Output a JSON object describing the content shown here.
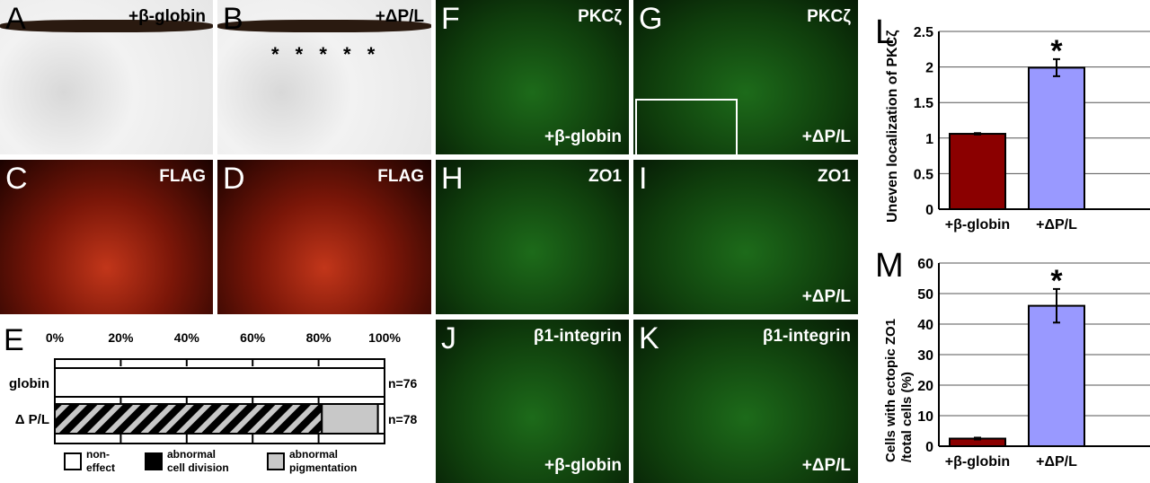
{
  "panels": {
    "A": {
      "letter": "A",
      "tag": "+β-globin"
    },
    "B": {
      "letter": "B",
      "tag": "+ΔP/L",
      "marks": "*  *  *  *  *"
    },
    "C": {
      "letter": "C",
      "tag": "FLAG"
    },
    "D": {
      "letter": "D",
      "tag": "FLAG"
    },
    "F": {
      "letter": "F",
      "tag": "PKCζ",
      "tag2": "+β-globin"
    },
    "G": {
      "letter": "G",
      "tag": "PKCζ",
      "tag2": "+ΔP/L"
    },
    "H": {
      "letter": "H",
      "tag": "ZO1"
    },
    "I": {
      "letter": "I",
      "tag": "ZO1",
      "tag2": "+ΔP/L"
    },
    "J": {
      "letter": "J",
      "tag": "β1-integrin",
      "tag2": "+β-globin"
    },
    "K": {
      "letter": "K",
      "tag": "β1-integrin",
      "tag2": "+ΔP/L"
    }
  },
  "chart_data": [
    {
      "panel": "E",
      "type": "bar",
      "orientation": "horizontal",
      "stacked": true,
      "xticks": [
        "0%",
        "20%",
        "40%",
        "60%",
        "80%",
        "100%"
      ],
      "xlim": [
        0,
        100
      ],
      "categories": [
        "globin",
        "Δ P/L"
      ],
      "n_labels": [
        "n=76",
        "n=78"
      ],
      "series": [
        {
          "name": "abnormal cell division",
          "pattern": "hatched black/gray (with abnormal pigmentation)",
          "values": [
            0,
            81
          ]
        },
        {
          "name": "abnormal pigmentation",
          "color": "#c8c8c8",
          "values": [
            0,
            17
          ]
        },
        {
          "name": "non-effect",
          "color": "#ffffff",
          "values": [
            100,
            2
          ]
        }
      ],
      "legend": [
        {
          "line1": "non-",
          "line2": "effect",
          "color": "#ffffff"
        },
        {
          "line1": "abnormal",
          "line2": "cell division",
          "color": "#000000"
        },
        {
          "line1": "abnormal",
          "line2": "pigmentation",
          "color": "#c8c8c8"
        }
      ],
      "legend_position": "bottom"
    },
    {
      "panel": "L",
      "type": "bar",
      "ylabel": "Uneven localization of PKCζ",
      "categories": [
        "+β-globin",
        "+ΔP/L"
      ],
      "values": [
        1.06,
        1.99
      ],
      "errors": [
        0.01,
        0.12
      ],
      "colors": [
        "#8b0000",
        "#9999ff"
      ],
      "yticks": [
        "0",
        "0.5",
        "1",
        "1.5",
        "2",
        "2.5"
      ],
      "ylim": [
        0,
        2.5
      ],
      "grid": true,
      "annotation": "*"
    },
    {
      "panel": "M",
      "type": "bar",
      "ylabel_line1": "Cells with ectopic ZO1",
      "ylabel_line2": "/total cells (%)",
      "categories": [
        "+β-globin",
        "+ΔP/L"
      ],
      "values": [
        2.5,
        46
      ],
      "errors": [
        0.3,
        5.5
      ],
      "colors": [
        "#8b0000",
        "#9999ff"
      ],
      "yticks": [
        "0",
        "10",
        "20",
        "30",
        "40",
        "50",
        "60"
      ],
      "ylim": [
        0,
        60
      ],
      "grid": true,
      "annotation": "*"
    }
  ]
}
